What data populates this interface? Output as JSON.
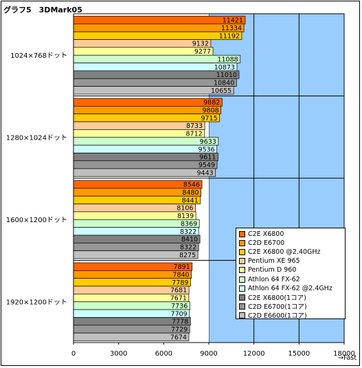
{
  "chart_data": {
    "type": "bar",
    "orientation": "horizontal",
    "title": "グラフ5　3DMark05",
    "categories": [
      "1024×768ドット",
      "1280×1024ドット",
      "1600×1200ドット",
      "1920×1200ドット"
    ],
    "series": [
      {
        "name": "C2E X6800",
        "values": [
          11421,
          9882,
          8546,
          7891
        ],
        "color": "#ff6600"
      },
      {
        "name": "C2D E6700",
        "values": [
          11334,
          9808,
          8480,
          7840
        ],
        "color": "#ff9900"
      },
      {
        "name": "C2E X6800 @2.40GHz",
        "values": [
          11192,
          9715,
          8441,
          7789
        ],
        "color": "#ffcc00"
      },
      {
        "name": "Pentium XE 965",
        "values": [
          9132,
          8733,
          8106,
          7681
        ],
        "color": "#ffcc99"
      },
      {
        "name": "Pentium D 960",
        "values": [
          9277,
          8712,
          8139,
          7671
        ],
        "color": "#ffff99"
      },
      {
        "name": "Athlon 64  FX-62",
        "values": [
          11088,
          9633,
          8369,
          7736
        ],
        "color": "#ccffcc"
      },
      {
        "name": "Athlon 64  FX-62 @2.4GHz",
        "values": [
          10873,
          9536,
          8322,
          7709
        ],
        "color": "#ccffff"
      },
      {
        "name": "C2E X6800(1コア)",
        "values": [
          11010,
          9611,
          8410,
          7778
        ],
        "color": "#808080"
      },
      {
        "name": "C2D E6700(1コア)",
        "values": [
          10840,
          9549,
          8322,
          7729
        ],
        "color": "#969696"
      },
      {
        "name": "C2D E6600(1コア)",
        "values": [
          10655,
          9443,
          8275,
          7674
        ],
        "color": "#c0c0c0"
      }
    ],
    "xlim": [
      0,
      18000
    ],
    "xticks": [
      0,
      3000,
      6000,
      9000,
      12000,
      15000,
      18000
    ],
    "xlabel": "→Fast",
    "grid": true,
    "plot_background": "#99ccff",
    "legend_position": "bottom-right inside plot"
  }
}
